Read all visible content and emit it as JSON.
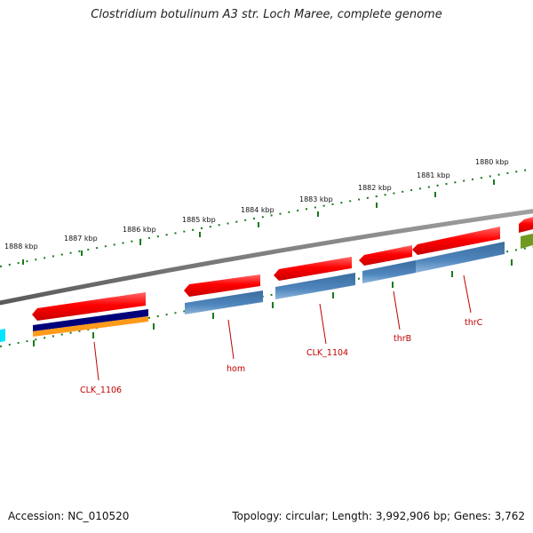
{
  "title": "Clostridium botulinum A3 str. Loch Maree, complete genome",
  "footer": {
    "accession": "Accession: NC_010520",
    "topology": "Topology: circular; Length: 3,992,906 bp; Genes: 3,762"
  },
  "scale_labels": [
    "1888 kbp",
    "1887 kbp",
    "1886 kbp",
    "1885 kbp",
    "1884 kbp",
    "1883 kbp",
    "1882 kbp",
    "1881 kbp",
    "1880 kbp"
  ],
  "gene_labels": [
    "CLK_1106",
    "hom",
    "CLK_1104",
    "thrB",
    "thrC"
  ],
  "colors": {
    "backbone": "#7f7f7f",
    "forward_gene": "#ff0000",
    "cds_blue": "#4f86bd",
    "cds_navy": "#00007a",
    "cds_orange": "#ff9a1a",
    "cds_cyan": "#00e5ff",
    "cds_olive": "#6f9a20",
    "tick_green": "#1a7a1a",
    "label_red": "#c00000"
  }
}
